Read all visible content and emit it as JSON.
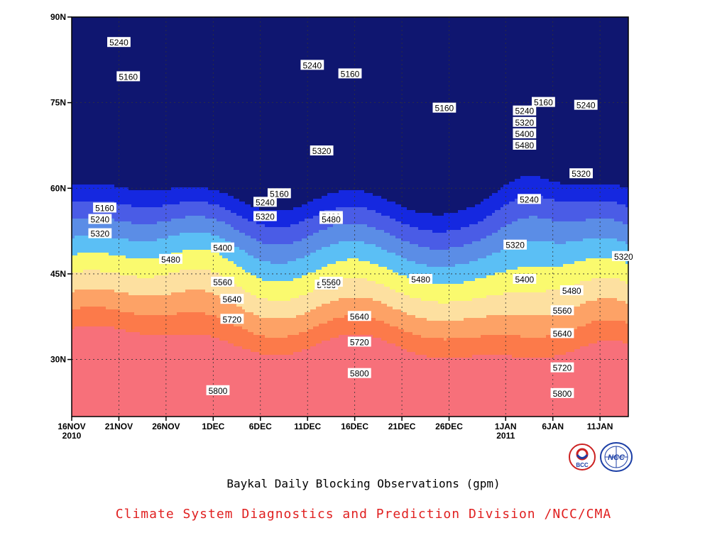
{
  "chart_data": {
    "type": "heatmap",
    "title": "Baykal Daily Blocking Observations (gpm)",
    "xlabel": "",
    "ylabel": "",
    "x_ticks": [
      "16NOV\n2010",
      "21NOV",
      "26NOV",
      "1DEC",
      "6DEC",
      "11DEC",
      "16DEC",
      "21DEC",
      "26DEC",
      "1JAN\n2011",
      "6JAN",
      "11JAN"
    ],
    "x_range": [
      "2010-11-16",
      "2011-01-14"
    ],
    "y_ticks": [
      "30N",
      "45N",
      "60N",
      "75N",
      "90N"
    ],
    "ylim": [
      20,
      90
    ],
    "levels": [
      5160,
      5240,
      5320,
      5400,
      5480,
      5560,
      5640,
      5720,
      5800
    ],
    "colors": [
      "#0f1670",
      "#1528e0",
      "#4a5ce6",
      "#5b8de6",
      "#5bbff5",
      "#fafa6e",
      "#fde0a0",
      "#fda266",
      "#fc7a4a",
      "#f7707a"
    ],
    "contour_labels": [
      {
        "value": 5160,
        "day": 6,
        "lat": 79.5
      },
      {
        "value": 5240,
        "day": 5,
        "lat": 85.5
      },
      {
        "value": 5160,
        "day": 3.5,
        "lat": 56.5
      },
      {
        "value": 5240,
        "day": 3,
        "lat": 54.5
      },
      {
        "value": 5320,
        "day": 3,
        "lat": 52.0
      },
      {
        "value": 5240,
        "day": 20.5,
        "lat": 57.5
      },
      {
        "value": 5160,
        "day": 22,
        "lat": 59.0
      },
      {
        "value": 5320,
        "day": 20.5,
        "lat": 55.0
      },
      {
        "value": 5400,
        "day": 16,
        "lat": 49.5
      },
      {
        "value": 5480,
        "day": 10.5,
        "lat": 47.5
      },
      {
        "value": 5480,
        "day": 27,
        "lat": 43.0
      },
      {
        "value": 5560,
        "day": 16,
        "lat": 43.5
      },
      {
        "value": 5640,
        "day": 17,
        "lat": 40.5
      },
      {
        "value": 5720,
        "day": 17,
        "lat": 37.0
      },
      {
        "value": 5800,
        "day": 15.5,
        "lat": 24.5
      },
      {
        "value": 5240,
        "day": 25.5,
        "lat": 81.5
      },
      {
        "value": 5160,
        "day": 29.5,
        "lat": 80.0
      },
      {
        "value": 5320,
        "day": 26.5,
        "lat": 66.5
      },
      {
        "value": 5400,
        "day": 27.5,
        "lat": 55.0
      },
      {
        "value": 5480,
        "day": 27.5,
        "lat": 54.5
      },
      {
        "value": 5480,
        "day": 37,
        "lat": 44.0
      },
      {
        "value": 5560,
        "day": 27.5,
        "lat": 43.5
      },
      {
        "value": 5640,
        "day": 30.5,
        "lat": 37.5
      },
      {
        "value": 5720,
        "day": 30.5,
        "lat": 33.0
      },
      {
        "value": 5800,
        "day": 30.5,
        "lat": 27.5
      },
      {
        "value": 5240,
        "day": 48.5,
        "lat": 58.0
      },
      {
        "value": 5160,
        "day": 39.5,
        "lat": 74.0
      },
      {
        "value": 5320,
        "day": 47,
        "lat": 50.0
      },
      {
        "value": 5320,
        "day": 54,
        "lat": 62.5
      },
      {
        "value": 5480,
        "day": 48,
        "lat": 67.5
      },
      {
        "value": 5400,
        "day": 48,
        "lat": 69.5
      },
      {
        "value": 5320,
        "day": 48,
        "lat": 71.5
      },
      {
        "value": 5240,
        "day": 48,
        "lat": 73.5
      },
      {
        "value": 5160,
        "day": 50,
        "lat": 75.0
      },
      {
        "value": 5240,
        "day": 54.5,
        "lat": 74.5
      },
      {
        "value": 5320,
        "day": 58.5,
        "lat": 48.0
      },
      {
        "value": 5400,
        "day": 48,
        "lat": 44.0
      },
      {
        "value": 5480,
        "day": 53,
        "lat": 42.0
      },
      {
        "value": 5560,
        "day": 52,
        "lat": 38.5
      },
      {
        "value": 5640,
        "day": 52,
        "lat": 34.5
      },
      {
        "value": 5720,
        "day": 52,
        "lat": 28.5
      },
      {
        "value": 5800,
        "day": 52,
        "lat": 24.0
      }
    ]
  },
  "footer": {
    "text": "Climate System Diagnostics and Prediction Division /NCC/CMA",
    "color": "#e02020"
  },
  "logos": [
    {
      "name": "bcc-logo",
      "text": "BCC"
    },
    {
      "name": "ncc-logo",
      "text": "NCC"
    }
  ]
}
